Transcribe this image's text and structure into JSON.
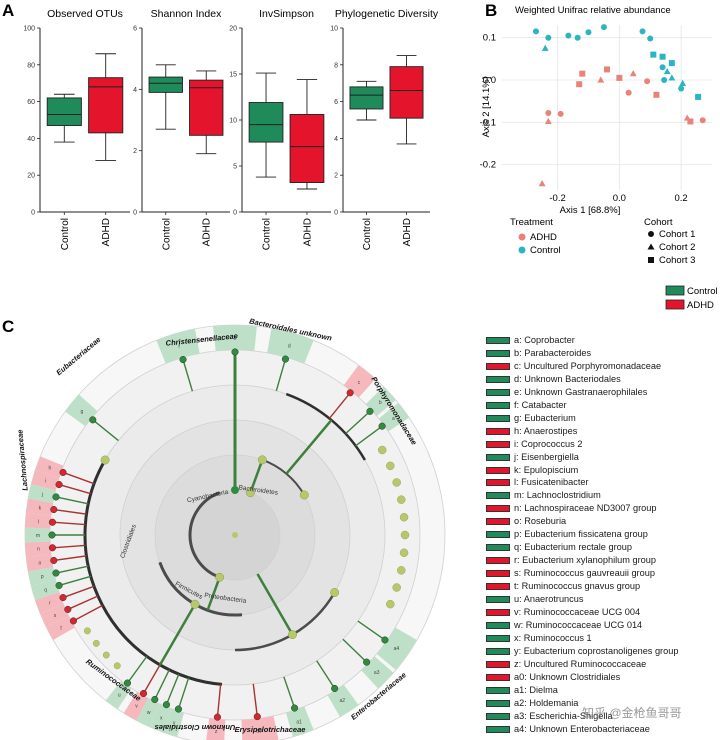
{
  "figure": {
    "panels": {
      "a": "A",
      "b": "B",
      "c": "C"
    },
    "watermark": "知乎 @金枪鱼哥哥"
  },
  "colors": {
    "control": "#1f8a5a",
    "adhd": "#e3142b",
    "control_point": "#2bb5c2",
    "adhd_point": "#e8837a"
  },
  "chart_data": [
    {
      "type": "box",
      "title": "Observed OTUs",
      "categories": [
        "Control",
        "ADHD"
      ],
      "yticks": [
        0,
        20,
        40,
        60,
        80,
        100
      ],
      "ylim": [
        0,
        100
      ],
      "boxes": [
        {
          "name": "Control",
          "min": 38,
          "q1": 47,
          "median": 53,
          "q3": 62,
          "max": 64
        },
        {
          "name": "ADHD",
          "min": 28,
          "q1": 43,
          "median": 68,
          "q3": 73,
          "max": 86
        }
      ]
    },
    {
      "type": "box",
      "title": "Shannon Index",
      "categories": [
        "Control",
        "ADHD"
      ],
      "yticks": [
        0,
        2,
        4,
        6
      ],
      "ylim": [
        0,
        6
      ],
      "boxes": [
        {
          "name": "Control",
          "min": 2.7,
          "q1": 3.9,
          "median": 4.2,
          "q3": 4.4,
          "max": 4.8
        },
        {
          "name": "ADHD",
          "min": 1.9,
          "q1": 2.5,
          "median": 4.05,
          "q3": 4.3,
          "max": 4.6
        }
      ]
    },
    {
      "type": "box",
      "title": "InvSimpson",
      "categories": [
        "Control",
        "ADHD"
      ],
      "yticks": [
        0,
        5,
        10,
        15,
        20
      ],
      "ylim": [
        0,
        20
      ],
      "boxes": [
        {
          "name": "Control",
          "min": 3.8,
          "q1": 7.6,
          "median": 9.5,
          "q3": 11.9,
          "max": 15.1
        },
        {
          "name": "ADHD",
          "min": 2.5,
          "q1": 3.2,
          "median": 7.1,
          "q3": 10.6,
          "max": 14.4
        }
      ]
    },
    {
      "type": "box",
      "title": "Phylogenetic Diversity",
      "categories": [
        "Control",
        "ADHD"
      ],
      "yticks": [
        0,
        2,
        4,
        6,
        8,
        10
      ],
      "ylim": [
        0,
        10
      ],
      "boxes": [
        {
          "name": "Control",
          "min": 5.0,
          "q1": 5.6,
          "median": 6.35,
          "q3": 6.8,
          "max": 7.1
        },
        {
          "name": "ADHD",
          "min": 3.7,
          "q1": 5.1,
          "median": 6.6,
          "q3": 7.9,
          "max": 8.5
        }
      ]
    },
    {
      "type": "scatter",
      "title": "Weighted Unifrac relative abundance",
      "xlabel": "Axis 1 [68.8%]",
      "ylabel": "Axis 2 [14.1%]",
      "xlim": [
        -0.38,
        0.3
      ],
      "ylim": [
        -0.26,
        0.13
      ],
      "xticks": [
        -0.2,
        0.0,
        0.2
      ],
      "yticks": [
        0.1,
        0.0,
        -0.1,
        -0.2
      ],
      "points": [
        {
          "x": -0.27,
          "y": 0.115,
          "group": "Control",
          "cohort": "Cohort 1"
        },
        {
          "x": -0.23,
          "y": 0.1,
          "group": "Control",
          "cohort": "Cohort 1"
        },
        {
          "x": -0.165,
          "y": 0.105,
          "group": "Control",
          "cohort": "Cohort 1"
        },
        {
          "x": -0.135,
          "y": 0.1,
          "group": "Control",
          "cohort": "Cohort 1"
        },
        {
          "x": -0.1,
          "y": 0.113,
          "group": "Control",
          "cohort": "Cohort 1"
        },
        {
          "x": -0.05,
          "y": 0.125,
          "group": "Control",
          "cohort": "Cohort 1"
        },
        {
          "x": 0.075,
          "y": 0.115,
          "group": "Control",
          "cohort": "Cohort 1"
        },
        {
          "x": 0.1,
          "y": 0.098,
          "group": "Control",
          "cohort": "Cohort 1"
        },
        {
          "x": 0.14,
          "y": 0.03,
          "group": "Control",
          "cohort": "Cohort 1"
        },
        {
          "x": 0.145,
          "y": 0.0,
          "group": "Control",
          "cohort": "Cohort 1"
        },
        {
          "x": 0.2,
          "y": -0.02,
          "group": "Control",
          "cohort": "Cohort 1"
        },
        {
          "x": -0.24,
          "y": 0.075,
          "group": "Control",
          "cohort": "Cohort 2"
        },
        {
          "x": 0.155,
          "y": 0.02,
          "group": "Control",
          "cohort": "Cohort 2"
        },
        {
          "x": 0.17,
          "y": 0.005,
          "group": "Control",
          "cohort": "Cohort 2"
        },
        {
          "x": 0.205,
          "y": -0.008,
          "group": "Control",
          "cohort": "Cohort 2"
        },
        {
          "x": 0.11,
          "y": 0.06,
          "group": "Control",
          "cohort": "Cohort 3"
        },
        {
          "x": 0.14,
          "y": 0.055,
          "group": "Control",
          "cohort": "Cohort 3"
        },
        {
          "x": 0.17,
          "y": 0.04,
          "group": "Control",
          "cohort": "Cohort 3"
        },
        {
          "x": 0.255,
          "y": -0.04,
          "group": "Control",
          "cohort": "Cohort 3"
        },
        {
          "x": -0.23,
          "y": -0.078,
          "group": "ADHD",
          "cohort": "Cohort 1"
        },
        {
          "x": -0.19,
          "y": -0.08,
          "group": "ADHD",
          "cohort": "Cohort 1"
        },
        {
          "x": 0.03,
          "y": -0.03,
          "group": "ADHD",
          "cohort": "Cohort 1"
        },
        {
          "x": 0.09,
          "y": -0.003,
          "group": "ADHD",
          "cohort": "Cohort 1"
        },
        {
          "x": 0.27,
          "y": -0.095,
          "group": "ADHD",
          "cohort": "Cohort 1"
        },
        {
          "x": -0.25,
          "y": -0.245,
          "group": "ADHD",
          "cohort": "Cohort 2"
        },
        {
          "x": -0.23,
          "y": -0.098,
          "group": "ADHD",
          "cohort": "Cohort 2"
        },
        {
          "x": -0.06,
          "y": 0.0,
          "group": "ADHD",
          "cohort": "Cohort 2"
        },
        {
          "x": 0.045,
          "y": 0.015,
          "group": "ADHD",
          "cohort": "Cohort 2"
        },
        {
          "x": 0.22,
          "y": -0.09,
          "group": "ADHD",
          "cohort": "Cohort 2"
        },
        {
          "x": -0.12,
          "y": 0.015,
          "group": "ADHD",
          "cohort": "Cohort 3"
        },
        {
          "x": -0.04,
          "y": 0.025,
          "group": "ADHD",
          "cohort": "Cohort 3"
        },
        {
          "x": 0.0,
          "y": 0.005,
          "group": "ADHD",
          "cohort": "Cohort 3"
        },
        {
          "x": 0.12,
          "y": -0.035,
          "group": "ADHD",
          "cohort": "Cohort 3"
        },
        {
          "x": 0.23,
          "y": -0.098,
          "group": "ADHD",
          "cohort": "Cohort 3"
        },
        {
          "x": -0.13,
          "y": -0.01,
          "group": "ADHD",
          "cohort": "Cohort 3"
        }
      ]
    }
  ],
  "scatter_legend": {
    "treatment_title": "Treatment",
    "treatment": [
      "ADHD",
      "Control"
    ],
    "cohort_title": "Cohort",
    "cohorts": [
      "Cohort 1",
      "Cohort 2",
      "Cohort 3"
    ]
  },
  "group_legend": [
    "Control",
    "ADHD"
  ],
  "cladogram": {
    "ring_labels": [
      "Christensenellaceae",
      "Bacteroidales unknown",
      "Porphyromonadaceae",
      "Enterobacteriaceae",
      "Erysipelotrichaceae",
      "Unknown Clostridiales",
      "Ruminococcaceae",
      "Lachnospiraceae",
      "Eubacteriaceae"
    ],
    "inner_labels": [
      "Cyanobacteria",
      "Bacteroidetes",
      "Clostridiales",
      "Firmicutes",
      "Proteobacteria"
    ],
    "ring_codes": [
      "f",
      "e",
      "d",
      "c",
      "b",
      "a",
      "a4",
      "a3",
      "a2",
      "a1",
      "a0",
      "z",
      "y",
      "x",
      "w",
      "v",
      "u",
      "t",
      "s",
      "r",
      "q",
      "p",
      "o",
      "n",
      "m",
      "l",
      "k",
      "j",
      "i",
      "h",
      "g"
    ]
  },
  "lefse_legend": [
    {
      "code": "a",
      "name": "Coprobacter",
      "group": "Control"
    },
    {
      "code": "b",
      "name": "Parabacteroides",
      "group": "Control"
    },
    {
      "code": "c",
      "name": "Uncultured Porphyromonadaceae",
      "group": "ADHD"
    },
    {
      "code": "d",
      "name": "Unknown Bacteriodales",
      "group": "Control"
    },
    {
      "code": "e",
      "name": "Unknown Gastranaerophilales",
      "group": "Control"
    },
    {
      "code": "f",
      "name": "Catabacter",
      "group": "Control"
    },
    {
      "code": "g",
      "name": "Eubacterium",
      "group": "Control"
    },
    {
      "code": "h",
      "name": "Anaerostipes",
      "group": "ADHD"
    },
    {
      "code": "i",
      "name": "Coprococcus 2",
      "group": "ADHD"
    },
    {
      "code": "j",
      "name": "Eisenbergiella",
      "group": "Control"
    },
    {
      "code": "k",
      "name": "Epulopiscium",
      "group": "ADHD"
    },
    {
      "code": "l",
      "name": "Fusicatenibacter",
      "group": "ADHD"
    },
    {
      "code": "m",
      "name": "Lachnoclostridium",
      "group": "Control"
    },
    {
      "code": "n",
      "name": "Lachnospiraceae ND3007 group",
      "group": "ADHD"
    },
    {
      "code": "o",
      "name": "Roseburia",
      "group": "ADHD"
    },
    {
      "code": "p",
      "name": "Eubacterium fissicatena group",
      "group": "Control"
    },
    {
      "code": "q",
      "name": "Eubacterium rectale group",
      "group": "Control"
    },
    {
      "code": "r",
      "name": "Eubacterium xylanophilum group",
      "group": "ADHD"
    },
    {
      "code": "s",
      "name": "Ruminococcus gauvreauii group",
      "group": "ADHD"
    },
    {
      "code": "t",
      "name": "Ruminococcus gnavus group",
      "group": "ADHD"
    },
    {
      "code": "u",
      "name": "Anaerotruncus",
      "group": "Control"
    },
    {
      "code": "v",
      "name": "Ruminococcaceae UCG 004",
      "group": "ADHD"
    },
    {
      "code": "w",
      "name": "Ruminococcaceae UCG 014",
      "group": "Control"
    },
    {
      "code": "x",
      "name": "Ruminococcus 1",
      "group": "Control"
    },
    {
      "code": "y",
      "name": "Eubacterium coprostanoligenes group",
      "group": "Control"
    },
    {
      "code": "z",
      "name": "Uncultured Ruminococcaceae",
      "group": "ADHD"
    },
    {
      "code": "a0",
      "name": "Unknown Clostridiales",
      "group": "ADHD"
    },
    {
      "code": "a1",
      "name": "Dielma",
      "group": "Control"
    },
    {
      "code": "a2",
      "name": "Holdemania",
      "group": "Control"
    },
    {
      "code": "a3",
      "name": "Escherichia-Shigella",
      "group": "Control"
    },
    {
      "code": "a4",
      "name": "Unknown Enterobacteriaceae",
      "group": "Control"
    }
  ]
}
